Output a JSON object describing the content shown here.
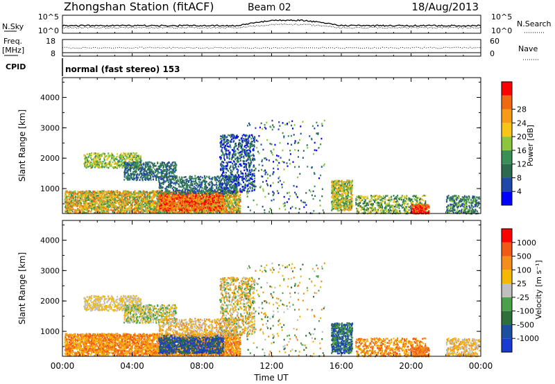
{
  "header": {
    "station": "Zhongshan Station (fitACF)",
    "beam": "Beam 02",
    "date": "18/Aug/2013"
  },
  "panels": {
    "nsky": {
      "label": "N.Sky",
      "tick_top": "10^5",
      "tick_bottom": "10^0"
    },
    "nsearch": {
      "label": "N.Search",
      "tick_top": "10^5",
      "tick_bottom": "10^0"
    },
    "freq": {
      "label_line1": "Freq.",
      "label_line2": "[MHz]",
      "tick_top": "18",
      "tick_bottom": "8"
    },
    "nave": {
      "label": "Nave",
      "tick_top": "60",
      "tick_bottom": "0"
    },
    "cpid": {
      "label": "CPID",
      "text": "normal (fast stereo) 153"
    }
  },
  "colors": {
    "power": [
      "#0000ff",
      "#1f47a8",
      "#2e6b4e",
      "#3a8f56",
      "#8cc63f",
      "#f7c419",
      "#f79a16",
      "#ee6a11",
      "#ff0000"
    ],
    "velocity": [
      "#ff0000",
      "#f05a14",
      "#f38d1c",
      "#f5b800",
      "#bfbfbf",
      "#4aa14a",
      "#2f6f3b",
      "#1d4f9e",
      "#1a3bd1"
    ]
  },
  "chart_data": [
    {
      "type": "heatmap",
      "name": "power",
      "xlabel": "",
      "ylabel": "Slant Range [km]",
      "xlim": [
        0,
        24
      ],
      "ylim": [
        180,
        4650
      ],
      "yticks": [
        "1000",
        "2000",
        "3000",
        "4000"
      ],
      "colorbar": {
        "label": "Power [dB]",
        "ticks": [
          "4",
          "8",
          "12",
          "16",
          "20",
          "24",
          "28"
        ]
      }
    },
    {
      "type": "heatmap",
      "name": "velocity",
      "xlabel": "Time UT",
      "ylabel": "Slant Range [km]",
      "xlim": [
        0,
        24
      ],
      "ylim": [
        180,
        4650
      ],
      "xticks": [
        "00:00",
        "04:00",
        "08:00",
        "12:00",
        "16:00",
        "20:00",
        "00:00"
      ],
      "yticks": [
        "1000",
        "2000",
        "3000",
        "4000"
      ],
      "colorbar": {
        "label": "Velocity [m s⁻¹]",
        "ticks": [
          "1000",
          "500",
          "100",
          "25",
          "-25",
          "-100",
          "-500",
          "-1000"
        ]
      }
    }
  ]
}
